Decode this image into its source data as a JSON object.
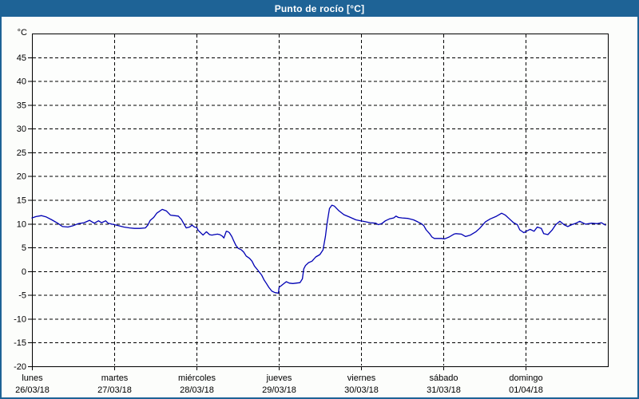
{
  "window": {
    "title": "Punto de rocío [°C]"
  },
  "colors": {
    "titlebar_bg": "#1e6396",
    "title_text": "#ffffff",
    "background": "#fcfdfb",
    "plot_background": "#fdfefd",
    "axis": "#000000",
    "grid": "#000000",
    "tick_label": "#000000",
    "line": "#0000b4",
    "outer_border": "#1e6396"
  },
  "chart_data": {
    "type": "line",
    "title": "Punto de rocío [°C]",
    "ylabel": "°C",
    "xlabel": "",
    "ylim": [
      -20,
      50
    ],
    "yticks": [
      -20,
      -15,
      -10,
      -5,
      0,
      5,
      10,
      15,
      20,
      25,
      30,
      35,
      40,
      45
    ],
    "ytick_unit_label": "°C",
    "x_range_hours": [
      0,
      168
    ],
    "x_tick_interval_hours": 24,
    "grid": "dashed",
    "legend": "none",
    "days": [
      {
        "name": "lunes",
        "date": "26/03/18"
      },
      {
        "name": "martes",
        "date": "27/03/18"
      },
      {
        "name": "miércoles",
        "date": "28/03/18"
      },
      {
        "name": "jueves",
        "date": "29/03/18"
      },
      {
        "name": "viernes",
        "date": "30/03/18"
      },
      {
        "name": "sábado",
        "date": "31/03/18"
      },
      {
        "name": "domingo",
        "date": "01/04/18"
      }
    ],
    "series": [
      {
        "name": "Punto de rocío",
        "unit": "°C",
        "color": "#0000b4",
        "points": [
          [
            0,
            11.2
          ],
          [
            1.2,
            11.5
          ],
          [
            2.8,
            11.7
          ],
          [
            4.2,
            11.4
          ],
          [
            5.8,
            10.8
          ],
          [
            7.5,
            10.1
          ],
          [
            8.9,
            9.4
          ],
          [
            10.5,
            9.3
          ],
          [
            12.1,
            9.6
          ],
          [
            13.5,
            10.0
          ],
          [
            15.2,
            10.2
          ],
          [
            16.8,
            10.7
          ],
          [
            17.5,
            10.4
          ],
          [
            18.2,
            10.1
          ],
          [
            19.4,
            10.6
          ],
          [
            20.3,
            10.2
          ],
          [
            21.5,
            10.6
          ],
          [
            22.2,
            10.1
          ],
          [
            24.0,
            9.8
          ],
          [
            25.2,
            9.6
          ],
          [
            26.8,
            9.3
          ],
          [
            28.5,
            9.1
          ],
          [
            29.9,
            9.0
          ],
          [
            31.5,
            9.0
          ],
          [
            33.1,
            9.1
          ],
          [
            33.8,
            9.7
          ],
          [
            34.5,
            10.7
          ],
          [
            35.5,
            11.3
          ],
          [
            36.4,
            12.2
          ],
          [
            38.0,
            13.0
          ],
          [
            39.2,
            12.7
          ],
          [
            40.4,
            11.8
          ],
          [
            41.5,
            11.7
          ],
          [
            42.7,
            11.6
          ],
          [
            43.6,
            10.9
          ],
          [
            44.3,
            10.0
          ],
          [
            45.0,
            9.1
          ],
          [
            46.0,
            9.3
          ],
          [
            46.7,
            9.7
          ],
          [
            47.4,
            9.3
          ],
          [
            48.1,
            9.2
          ],
          [
            48.5,
            8.6
          ],
          [
            49.5,
            7.9
          ],
          [
            49.9,
            7.6
          ],
          [
            50.9,
            8.3
          ],
          [
            51.8,
            7.7
          ],
          [
            52.5,
            7.6
          ],
          [
            53.2,
            7.7
          ],
          [
            54.1,
            7.8
          ],
          [
            54.8,
            7.7
          ],
          [
            55.5,
            7.4
          ],
          [
            56.0,
            7.0
          ],
          [
            56.7,
            8.4
          ],
          [
            57.2,
            8.3
          ],
          [
            57.6,
            8.1
          ],
          [
            58.3,
            7.3
          ],
          [
            58.8,
            6.5
          ],
          [
            59.5,
            5.4
          ],
          [
            60.2,
            4.8
          ],
          [
            61.1,
            4.5
          ],
          [
            61.8,
            4.0
          ],
          [
            62.5,
            3.2
          ],
          [
            63.5,
            2.7
          ],
          [
            64.2,
            2.1
          ],
          [
            64.9,
            1.1
          ],
          [
            65.8,
            0.3
          ],
          [
            67.0,
            -0.8
          ],
          [
            67.7,
            -1.8
          ],
          [
            68.4,
            -2.6
          ],
          [
            69.1,
            -3.4
          ],
          [
            70.0,
            -4.2
          ],
          [
            70.9,
            -4.5
          ],
          [
            71.9,
            -4.6
          ],
          [
            72.1,
            -3.4
          ],
          [
            72.8,
            -3.0
          ],
          [
            74.2,
            -2.2
          ],
          [
            75.1,
            -2.5
          ],
          [
            76.1,
            -2.6
          ],
          [
            77.0,
            -2.5
          ],
          [
            78.2,
            -2.4
          ],
          [
            78.9,
            -1.6
          ],
          [
            79.3,
            0.5
          ],
          [
            79.8,
            1.2
          ],
          [
            80.7,
            1.8
          ],
          [
            81.7,
            2.1
          ],
          [
            82.8,
            3.0
          ],
          [
            84.0,
            3.5
          ],
          [
            84.9,
            4.5
          ],
          [
            85.6,
            7.3
          ],
          [
            86.1,
            10.1
          ],
          [
            86.8,
            13.2
          ],
          [
            87.5,
            13.9
          ],
          [
            88.2,
            13.7
          ],
          [
            89.4,
            12.8
          ],
          [
            91.0,
            11.9
          ],
          [
            92.6,
            11.4
          ],
          [
            94.5,
            10.8
          ],
          [
            95.9,
            10.6
          ],
          [
            97.3,
            10.4
          ],
          [
            98.7,
            10.2
          ],
          [
            100.3,
            10.1
          ],
          [
            101.0,
            9.8
          ],
          [
            102.0,
            10.0
          ],
          [
            103.1,
            10.6
          ],
          [
            104.3,
            11.0
          ],
          [
            105.5,
            11.2
          ],
          [
            106.2,
            11.6
          ],
          [
            106.9,
            11.3
          ],
          [
            108.0,
            11.2
          ],
          [
            109.7,
            11.1
          ],
          [
            111.3,
            10.8
          ],
          [
            112.5,
            10.4
          ],
          [
            113.6,
            10.0
          ],
          [
            114.3,
            9.6
          ],
          [
            115.0,
            8.7
          ],
          [
            116.0,
            7.9
          ],
          [
            116.7,
            7.2
          ],
          [
            117.4,
            6.9
          ],
          [
            119.5,
            6.9
          ],
          [
            120.4,
            6.8
          ],
          [
            121.7,
            7.2
          ],
          [
            123.1,
            7.8
          ],
          [
            123.7,
            7.9
          ],
          [
            125.3,
            7.8
          ],
          [
            126.5,
            7.3
          ],
          [
            127.9,
            7.6
          ],
          [
            129.5,
            8.3
          ],
          [
            130.6,
            9.0
          ],
          [
            132.3,
            10.4
          ],
          [
            133.7,
            11.0
          ],
          [
            135.3,
            11.5
          ],
          [
            137.0,
            12.2
          ],
          [
            138.1,
            11.8
          ],
          [
            139.3,
            11.0
          ],
          [
            140.5,
            10.2
          ],
          [
            141.6,
            9.8
          ],
          [
            142.3,
            8.7
          ],
          [
            143.5,
            8.1
          ],
          [
            144.2,
            8.4
          ],
          [
            145.3,
            8.8
          ],
          [
            146.5,
            8.4
          ],
          [
            147.4,
            9.3
          ],
          [
            148.6,
            9.0
          ],
          [
            149.3,
            7.9
          ],
          [
            150.5,
            7.7
          ],
          [
            151.7,
            8.6
          ],
          [
            152.8,
            9.8
          ],
          [
            154.0,
            10.5
          ],
          [
            155.2,
            9.8
          ],
          [
            156.3,
            9.4
          ],
          [
            157.5,
            9.8
          ],
          [
            158.7,
            10.1
          ],
          [
            159.8,
            10.5
          ],
          [
            161.5,
            9.9
          ],
          [
            163.3,
            10.1
          ],
          [
            164.9,
            10.0
          ],
          [
            166.1,
            10.2
          ],
          [
            167.3,
            9.7
          ]
        ]
      }
    ]
  }
}
